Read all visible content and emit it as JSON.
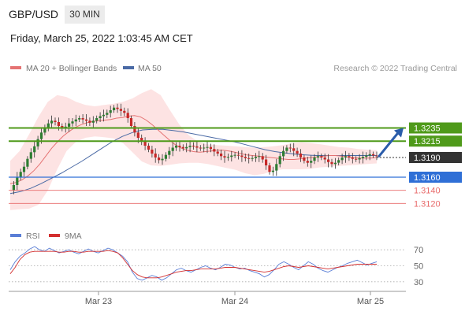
{
  "header": {
    "pair": "GBP/USD",
    "timeframe": "30 MIN",
    "datetime": "Friday, March 25, 2022 1:03:45 AM CET"
  },
  "legend": {
    "ma20_label": "MA 20 + Bollinger Bands",
    "ma50_label": "MA 50",
    "credit": "Research © 2022 Trading Central",
    "rsi_label": "RSI",
    "rsi_ma_label": "9MA"
  },
  "colors": {
    "resistance": "#4f9a1a",
    "support": "#2f6fd6",
    "support_light": "#e86a6a",
    "current": "#333333",
    "candle_up": "#2e7d32",
    "candle_down": "#c62828",
    "ma20": "#e57373",
    "ma50": "#4a6aa5",
    "bollinger_fill": "#fde0e0",
    "rsi": "#5a7ed6",
    "rsi_ma": "#d32f2f",
    "arrow": "#2a5caa"
  },
  "chart_data": [
    {
      "type": "candlestick",
      "x_ticks": [
        "Mar 23",
        "Mar 24",
        "Mar 25"
      ],
      "price_levels": [
        {
          "kind": "resistance",
          "value": 1.3235,
          "label": "1.3235"
        },
        {
          "kind": "resistance",
          "value": 1.3215,
          "label": "1.3215"
        },
        {
          "kind": "current",
          "value": 1.319,
          "label": "1.3190"
        },
        {
          "kind": "support",
          "value": 1.316,
          "label": "1.3160"
        },
        {
          "kind": "support_minor",
          "value": 1.314,
          "label": "1.3140"
        },
        {
          "kind": "support_minor",
          "value": 1.312,
          "label": "1.3120"
        }
      ],
      "y_range": [
        1.31,
        1.331
      ],
      "close_path": [
        1.314,
        1.3148,
        1.316,
        1.3168,
        1.3176,
        1.3188,
        1.3198,
        1.3207,
        1.3218,
        1.3228,
        1.3236,
        1.3242,
        1.3246,
        1.3244,
        1.3238,
        1.3234,
        1.3237,
        1.3242,
        1.3245,
        1.3248,
        1.325,
        1.3248,
        1.3246,
        1.3243,
        1.3246,
        1.325,
        1.3253,
        1.3255,
        1.3258,
        1.3262,
        1.3266,
        1.3264,
        1.3261,
        1.3258,
        1.325,
        1.3238,
        1.3228,
        1.322,
        1.3214,
        1.3208,
        1.3202,
        1.3196,
        1.319,
        1.3186,
        1.3188,
        1.3194,
        1.32,
        1.3205,
        1.3208,
        1.3206,
        1.3204,
        1.3206,
        1.3208,
        1.3207,
        1.3205,
        1.3204,
        1.3205,
        1.3206,
        1.3203,
        1.3199,
        1.3196,
        1.3192,
        1.319,
        1.3191,
        1.3193,
        1.3194,
        1.3193,
        1.3191,
        1.3189,
        1.3188,
        1.3189,
        1.3191,
        1.3192,
        1.3187,
        1.3178,
        1.3168,
        1.317,
        1.318,
        1.3192,
        1.32,
        1.3205,
        1.3204,
        1.32,
        1.3196,
        1.319,
        1.3185,
        1.3182,
        1.3185,
        1.319,
        1.3192,
        1.319,
        1.3187,
        1.3183,
        1.318,
        1.3182,
        1.3186,
        1.319,
        1.3192,
        1.319,
        1.3188,
        1.3187,
        1.3189,
        1.3191,
        1.3193,
        1.3195,
        1.3193,
        1.3192
      ],
      "ma20": [
        1.315,
        1.3152,
        1.3156,
        1.3162,
        1.317,
        1.318,
        1.3192,
        1.3204,
        1.3214,
        1.3223,
        1.323,
        1.3236,
        1.324,
        1.3243,
        1.3245,
        1.3246,
        1.3247,
        1.3248,
        1.325,
        1.3251,
        1.3253,
        1.3254,
        1.3252,
        1.3247,
        1.324,
        1.3232,
        1.3224,
        1.3216,
        1.3209,
        1.3204,
        1.3201,
        1.3199,
        1.3198,
        1.3199,
        1.32,
        1.3201,
        1.3201,
        1.32,
        1.3198,
        1.3196,
        1.3194,
        1.3193,
        1.3192,
        1.3191,
        1.319,
        1.3189,
        1.3188,
        1.3187,
        1.3187,
        1.3188,
        1.3189,
        1.319,
        1.3191,
        1.3192,
        1.3193,
        1.3193,
        1.3192,
        1.3191,
        1.319,
        1.3189,
        1.3189,
        1.3189,
        1.319
      ],
      "ma50": [
        1.3135,
        1.3138,
        1.3143,
        1.315,
        1.3158,
        1.3166,
        1.3175,
        1.3184,
        1.3194,
        1.3204,
        1.3214,
        1.3222,
        1.3228,
        1.3232,
        1.3233,
        1.3233,
        1.3231,
        1.3229,
        1.3226,
        1.3223,
        1.322,
        1.3217,
        1.3214,
        1.321,
        1.3206,
        1.3202,
        1.3199,
        1.3197,
        1.3195,
        1.3194,
        1.3193,
        1.3193,
        1.3193,
        1.3193,
        1.3193,
        1.3193,
        1.3193
      ],
      "bb_upper": [
        1.3185,
        1.32,
        1.3225,
        1.3252,
        1.3275,
        1.3285,
        1.3282,
        1.3275,
        1.327,
        1.3268,
        1.327,
        1.3272,
        1.3275,
        1.328,
        1.3288,
        1.3294,
        1.3285,
        1.3262,
        1.324,
        1.3224,
        1.3214,
        1.321,
        1.3209,
        1.3208,
        1.3207,
        1.3206,
        1.3205,
        1.3206,
        1.3207,
        1.3209,
        1.3212,
        1.3213,
        1.3212,
        1.321,
        1.3208,
        1.3206,
        1.3205,
        1.3203,
        1.3202,
        1.3201
      ],
      "bb_lower": [
        1.311,
        1.3111,
        1.3112,
        1.3118,
        1.314,
        1.3172,
        1.32,
        1.3214,
        1.322,
        1.3222,
        1.3221,
        1.3219,
        1.3212,
        1.3198,
        1.3184,
        1.3178,
        1.3177,
        1.3179,
        1.3181,
        1.3182,
        1.3182,
        1.318,
        1.3177,
        1.3174,
        1.3171,
        1.3166,
        1.3163,
        1.3165,
        1.317,
        1.3172,
        1.3172,
        1.3172,
        1.3173,
        1.3175,
        1.3176,
        1.3177,
        1.3178,
        1.3179,
        1.318,
        1.3181
      ],
      "forecast_arrow": {
        "from": 1.3192,
        "to": 1.3235
      }
    },
    {
      "type": "line",
      "name": "RSI panel",
      "y_ticks": [
        70,
        50,
        30
      ],
      "y_range": [
        20,
        80
      ],
      "rsi": [
        45,
        55,
        62,
        66,
        71,
        74,
        70,
        68,
        72,
        69,
        66,
        68,
        70,
        67,
        65,
        68,
        71,
        68,
        66,
        69,
        72,
        70,
        66,
        62,
        55,
        42,
        34,
        32,
        35,
        38,
        36,
        32,
        35,
        40,
        45,
        47,
        44,
        42,
        45,
        48,
        50,
        47,
        45,
        48,
        52,
        51,
        48,
        46,
        47,
        44,
        42,
        40,
        36,
        39,
        45,
        52,
        55,
        52,
        48,
        45,
        50,
        55,
        52,
        47,
        44,
        42,
        45,
        48,
        50,
        53,
        55,
        57,
        54,
        51,
        53,
        55
      ],
      "rsi_ma": [
        40,
        48,
        58,
        64,
        67,
        68,
        68,
        68,
        68,
        68,
        67,
        67,
        68,
        68,
        67,
        67,
        68,
        68,
        68,
        68,
        69,
        68,
        66,
        60,
        52,
        44,
        39,
        36,
        35,
        35,
        35,
        36,
        38,
        40,
        42,
        43,
        44,
        44,
        45,
        46,
        46,
        46,
        46,
        47,
        48,
        48,
        48,
        47,
        46,
        45,
        44,
        43,
        42,
        43,
        45,
        47,
        49,
        50,
        49,
        48,
        49,
        50,
        49,
        48,
        47,
        46,
        47,
        48,
        49,
        50,
        51,
        52,
        52,
        52,
        52,
        52
      ]
    }
  ]
}
